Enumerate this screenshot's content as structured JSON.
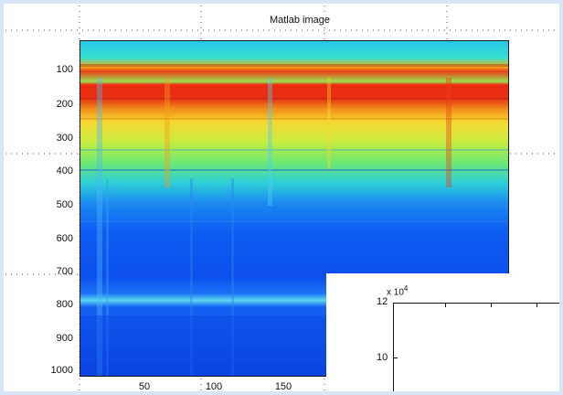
{
  "figure": {
    "title": "Matlab image",
    "background": "#ffffff",
    "border_color": "#d7e6f7",
    "colormap": "jet"
  },
  "main_axes": {
    "yticks": [
      "100",
      "200",
      "300",
      "400",
      "500",
      "600",
      "700",
      "800",
      "900",
      "1000"
    ],
    "xticks": [
      "50",
      "100",
      "150"
    ]
  },
  "inset_axes": {
    "exponent_base": "x 10",
    "exponent_power": "4",
    "yticks": [
      "12",
      "10"
    ]
  }
}
